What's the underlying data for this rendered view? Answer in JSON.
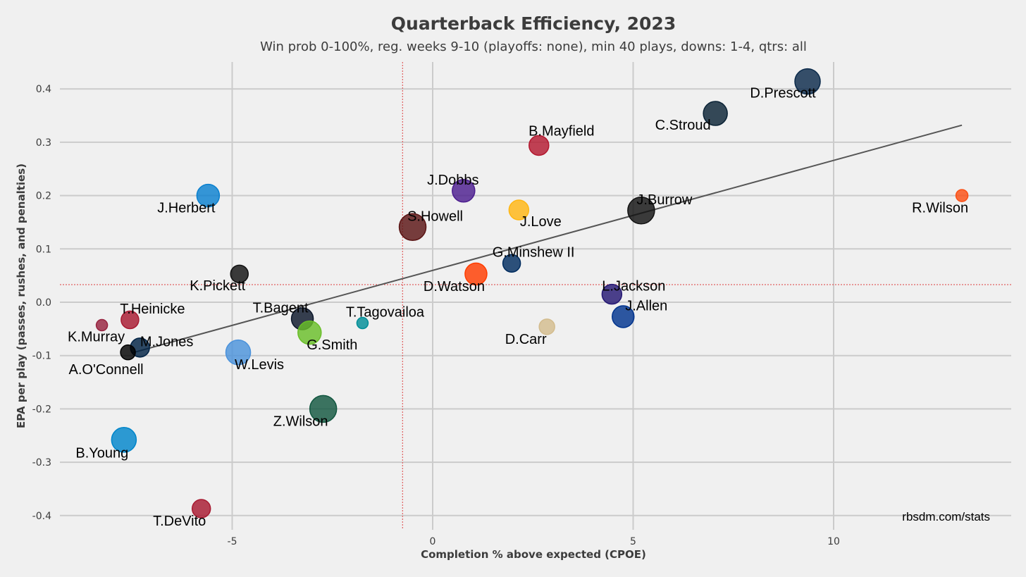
{
  "chart_data": {
    "type": "scatter",
    "title": "Quarterback Efficiency, 2023",
    "subtitle": "Win prob 0-100%, reg. weeks 9-10 (playoffs: none), min 40 plays, downs: 1-4, qtrs: all",
    "xlabel": "Completion % above expected (CPOE)",
    "ylabel": "EPA per play (passes, rushes, and penalties)",
    "xlim": [
      -9.3,
      14.3
    ],
    "ylim": [
      -0.43,
      0.455
    ],
    "xticks": [
      -5,
      0,
      5,
      10
    ],
    "xtick_labels": [
      "-5",
      "0",
      "5",
      "10"
    ],
    "yticks": [
      -0.4,
      -0.3,
      -0.2,
      -0.1,
      0.0,
      0.1,
      0.2,
      0.3,
      0.4
    ],
    "ytick_labels": [
      "-0.4",
      "-0.3",
      "-0.2",
      "-0.1",
      "0.0",
      "0.1",
      "0.2",
      "0.3",
      "0.4"
    ],
    "grid": true,
    "mean_lines": {
      "x": -0.75,
      "y": 0.033,
      "color": "#e06060"
    },
    "trendline": {
      "x": [
        -7.5,
        13.2
      ],
      "y": [
        -0.095,
        0.332
      ],
      "color": "#555555"
    },
    "source": "rbsdm.com/stats",
    "points": [
      {
        "name": "D.Prescott",
        "x": 9.35,
        "y": 0.414,
        "size": 36,
        "color": "#0b2a4a"
      },
      {
        "name": "C.Stroud",
        "x": 7.05,
        "y": 0.354,
        "size": 34,
        "color": "#0a2235"
      },
      {
        "name": "B.Mayfield",
        "x": 2.65,
        "y": 0.294,
        "size": 28,
        "color": "#b3182f"
      },
      {
        "name": "J.Dobbs",
        "x": 0.77,
        "y": 0.209,
        "size": 32,
        "color": "#4c1d8f"
      },
      {
        "name": "J.Herbert",
        "x": -5.6,
        "y": 0.2,
        "size": 32,
        "color": "#0a80cf"
      },
      {
        "name": "R.Wilson",
        "x": 13.2,
        "y": 0.2,
        "size": 17,
        "color": "#fb4f14"
      },
      {
        "name": "J.Love",
        "x": 2.15,
        "y": 0.173,
        "size": 28,
        "color": "#ffb612"
      },
      {
        "name": "J.Burrow",
        "x": 5.2,
        "y": 0.172,
        "size": 38,
        "color": "#111111"
      },
      {
        "name": "S.Howell",
        "x": -0.5,
        "y": 0.141,
        "size": 38,
        "color": "#5a1414"
      },
      {
        "name": "G.Minshew II",
        "x": 1.97,
        "y": 0.073,
        "size": 25,
        "color": "#002c5f"
      },
      {
        "name": "K.Pickett",
        "x": -4.82,
        "y": 0.053,
        "size": 25,
        "color": "#111111"
      },
      {
        "name": "D.Watson",
        "x": 1.08,
        "y": 0.053,
        "size": 31,
        "color": "#ff3c00"
      },
      {
        "name": "L.Jackson",
        "x": 4.47,
        "y": 0.015,
        "size": 28,
        "color": "#241773"
      },
      {
        "name": "J.Allen",
        "x": 4.75,
        "y": -0.027,
        "size": 31,
        "color": "#00338d"
      },
      {
        "name": "T.Heinicke",
        "x": -7.55,
        "y": -0.033,
        "size": 25,
        "color": "#a71930"
      },
      {
        "name": "T.Bagent",
        "x": -3.25,
        "y": -0.031,
        "size": 31,
        "color": "#0b162a"
      },
      {
        "name": "T.Tagovailoa",
        "x": -1.75,
        "y": -0.039,
        "size": 16,
        "color": "#008e97"
      },
      {
        "name": "K.Murray",
        "x": -8.25,
        "y": -0.043,
        "size": 16,
        "color": "#97233f"
      },
      {
        "name": "D.Carr",
        "x": 2.85,
        "y": -0.046,
        "size": 22,
        "color": "#d3bc8d"
      },
      {
        "name": "G.Smith",
        "x": -3.07,
        "y": -0.057,
        "size": 33,
        "color": "#69be28"
      },
      {
        "name": "M.Jones",
        "x": -7.3,
        "y": -0.085,
        "size": 27,
        "color": "#002244"
      },
      {
        "name": "A.O'Connell",
        "x": -7.6,
        "y": -0.094,
        "size": 21,
        "color": "#000000"
      },
      {
        "name": "W.Levis",
        "x": -4.85,
        "y": -0.094,
        "size": 35,
        "color": "#4b92db"
      },
      {
        "name": "Z.Wilson",
        "x": -2.73,
        "y": -0.2,
        "size": 38,
        "color": "#125740"
      },
      {
        "name": "B.Young",
        "x": -7.7,
        "y": -0.258,
        "size": 35,
        "color": "#0085ca"
      },
      {
        "name": "T.DeVito",
        "x": -5.77,
        "y": -0.387,
        "size": 26,
        "color": "#a71930"
      }
    ]
  }
}
